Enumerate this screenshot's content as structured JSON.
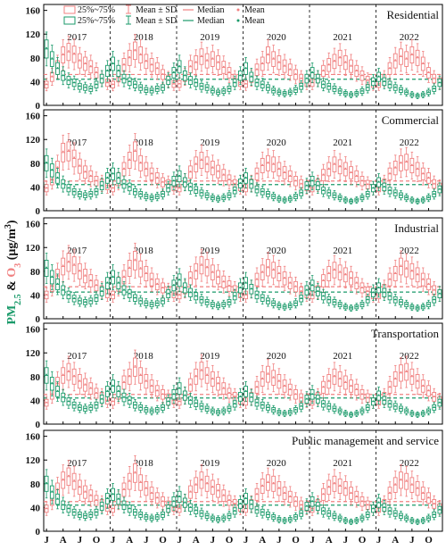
{
  "chart_data": {
    "type": "box",
    "ylabel_parts": [
      "PM",
      "2.5",
      " & ",
      "O",
      "3",
      " (μg/m",
      "3",
      ")"
    ],
    "ylim": [
      0,
      170
    ],
    "yticks": [
      0,
      40,
      80,
      120,
      160
    ],
    "years": [
      "2017",
      "2018",
      "2019",
      "2020",
      "2021",
      "2022"
    ],
    "month_ticks": [
      "J",
      "A",
      "J",
      "O",
      "J",
      "A",
      "J",
      "O",
      "J",
      "A",
      "J",
      "O",
      "J",
      "A",
      "J",
      "O",
      "J",
      "A",
      "J",
      "O",
      "J",
      "A",
      "J",
      "O"
    ],
    "legend": {
      "pm_box": "25%~75%",
      "o3_box": "25%~75%",
      "pm_msd": "Mean ± SD",
      "o3_msd": "Mean ± SD",
      "pm_median": "Median",
      "o3_median": "Median",
      "pm_mean": "Mean",
      "o3_mean": "Mean"
    },
    "colors": {
      "o3": "#f08080",
      "pm25": "#1a9a6a",
      "grid": "#000000"
    },
    "panels": [
      {
        "name": "Residential",
        "o3_overall_mean": 52,
        "pm25_overall_mean": 44,
        "o3_median": [
          35,
          48,
          65,
          85,
          90,
          86,
          75,
          70,
          65,
          55,
          45,
          38,
          35,
          47,
          68,
          80,
          92,
          85,
          74,
          68,
          62,
          52,
          44,
          36,
          36,
          48,
          65,
          72,
          82,
          75,
          78,
          72,
          64,
          55,
          45,
          38,
          36,
          46,
          60,
          70,
          85,
          78,
          72,
          66,
          60,
          52,
          45,
          38,
          38,
          45,
          58,
          68,
          74,
          80,
          72,
          66,
          58,
          50,
          42,
          36,
          36,
          45,
          62,
          75,
          82,
          78,
          85,
          80,
          70,
          55,
          45,
          40
        ],
        "pm25_median": [
          95,
          78,
          62,
          50,
          42,
          38,
          32,
          30,
          28,
          35,
          45,
          58,
          70,
          58,
          45,
          40,
          35,
          30,
          26,
          25,
          28,
          30,
          42,
          55,
          65,
          50,
          42,
          38,
          32,
          30,
          25,
          22,
          24,
          28,
          38,
          50,
          62,
          48,
          38,
          35,
          30,
          25,
          22,
          20,
          22,
          26,
          32,
          45,
          55,
          45,
          35,
          32,
          28,
          24,
          20,
          18,
          20,
          24,
          30,
          40,
          48,
          40,
          35,
          30,
          26,
          22,
          18,
          16,
          18,
          22,
          28,
          38
        ]
      },
      {
        "name": "Commercial",
        "o3_overall_mean": 50,
        "pm25_overall_mean": 44,
        "o3_median": [
          38,
          52,
          72,
          98,
          100,
          88,
          75,
          65,
          58,
          50,
          46,
          42,
          38,
          50,
          70,
          85,
          100,
          80,
          70,
          62,
          55,
          48,
          45,
          40,
          38,
          48,
          65,
          78,
          85,
          78,
          72,
          66,
          60,
          52,
          45,
          40,
          38,
          46,
          62,
          76,
          80,
          78,
          70,
          64,
          58,
          50,
          45,
          40,
          38,
          46,
          60,
          70,
          78,
          74,
          70,
          64,
          58,
          50,
          44,
          38,
          38,
          46,
          62,
          72,
          80,
          82,
          76,
          70,
          62,
          55,
          45,
          40
        ],
        "pm25_median": [
          80,
          68,
          55,
          45,
          38,
          32,
          28,
          26,
          28,
          32,
          42,
          55,
          62,
          55,
          45,
          40,
          32,
          28,
          24,
          22,
          24,
          28,
          38,
          50,
          58,
          48,
          40,
          35,
          30,
          26,
          22,
          20,
          22,
          26,
          34,
          46,
          55,
          45,
          36,
          32,
          28,
          24,
          20,
          18,
          20,
          24,
          30,
          42,
          50,
          42,
          34,
          30,
          26,
          22,
          18,
          16,
          18,
          22,
          28,
          38,
          48,
          40,
          34,
          30,
          26,
          22,
          18,
          16,
          18,
          22,
          28,
          36
        ]
      },
      {
        "name": "Industrial",
        "o3_overall_mean": 54,
        "pm25_overall_mean": 45,
        "o3_median": [
          40,
          55,
          72,
          88,
          95,
          90,
          80,
          72,
          64,
          56,
          48,
          42,
          40,
          55,
          70,
          85,
          98,
          84,
          76,
          66,
          58,
          52,
          46,
          42,
          40,
          50,
          68,
          80,
          90,
          86,
          78,
          70,
          62,
          55,
          48,
          42,
          40,
          50,
          66,
          78,
          86,
          82,
          76,
          68,
          60,
          54,
          46,
          42,
          40,
          48,
          64,
          76,
          82,
          78,
          74,
          68,
          60,
          52,
          46,
          40,
          40,
          50,
          66,
          76,
          88,
          84,
          80,
          74,
          66,
          58,
          48,
          42
        ],
        "pm25_median": [
          85,
          70,
          58,
          48,
          40,
          34,
          30,
          28,
          30,
          35,
          46,
          60,
          70,
          60,
          48,
          42,
          35,
          30,
          26,
          24,
          26,
          30,
          42,
          56,
          65,
          52,
          44,
          38,
          32,
          28,
          24,
          22,
          24,
          28,
          38,
          52,
          60,
          50,
          40,
          35,
          30,
          26,
          22,
          20,
          22,
          26,
          34,
          48,
          56,
          46,
          38,
          32,
          28,
          24,
          20,
          18,
          20,
          24,
          32,
          44,
          52,
          44,
          38,
          32,
          28,
          24,
          20,
          18,
          20,
          24,
          32,
          42
        ]
      },
      {
        "name": "Transportation",
        "o3_overall_mean": 50,
        "pm25_overall_mean": 44,
        "o3_median": [
          36,
          50,
          68,
          82,
          88,
          80,
          72,
          66,
          60,
          52,
          46,
          40,
          38,
          50,
          70,
          80,
          96,
          82,
          72,
          64,
          56,
          50,
          44,
          40,
          38,
          48,
          66,
          80,
          90,
          82,
          76,
          68,
          60,
          52,
          46,
          40,
          38,
          46,
          62,
          76,
          84,
          78,
          72,
          64,
          58,
          50,
          44,
          40,
          38,
          46,
          62,
          72,
          80,
          76,
          70,
          64,
          58,
          50,
          44,
          38,
          38,
          46,
          62,
          76,
          86,
          88,
          80,
          72,
          64,
          56,
          46,
          40
        ],
        "pm25_median": [
          82,
          68,
          55,
          45,
          38,
          32,
          28,
          26,
          28,
          32,
          42,
          55,
          64,
          55,
          45,
          40,
          32,
          28,
          24,
          22,
          24,
          28,
          38,
          50,
          60,
          48,
          40,
          35,
          30,
          26,
          22,
          20,
          22,
          26,
          34,
          46,
          55,
          45,
          36,
          32,
          28,
          24,
          20,
          18,
          20,
          24,
          30,
          42,
          50,
          42,
          34,
          30,
          26,
          22,
          18,
          16,
          18,
          22,
          28,
          38,
          48,
          40,
          34,
          30,
          26,
          22,
          18,
          16,
          18,
          22,
          28,
          36
        ]
      },
      {
        "name": "Public management and service",
        "o3_overall_mean": 50,
        "pm25_overall_mean": 44,
        "o3_median": [
          38,
          52,
          70,
          86,
          92,
          84,
          74,
          66,
          60,
          52,
          46,
          40,
          38,
          52,
          70,
          84,
          98,
          82,
          72,
          64,
          56,
          50,
          44,
          40,
          38,
          48,
          66,
          78,
          86,
          80,
          74,
          68,
          60,
          52,
          46,
          40,
          38,
          46,
          62,
          76,
          82,
          80,
          72,
          64,
          58,
          50,
          44,
          40,
          38,
          46,
          62,
          74,
          80,
          76,
          72,
          64,
          58,
          50,
          44,
          38,
          38,
          46,
          64,
          78,
          86,
          84,
          78,
          72,
          64,
          56,
          46,
          40
        ],
        "pm25_median": [
          80,
          66,
          54,
          44,
          38,
          32,
          28,
          26,
          28,
          32,
          42,
          55,
          62,
          54,
          44,
          38,
          32,
          28,
          24,
          22,
          24,
          28,
          38,
          50,
          58,
          48,
          40,
          35,
          30,
          26,
          22,
          20,
          22,
          26,
          34,
          46,
          55,
          45,
          36,
          32,
          28,
          24,
          20,
          18,
          20,
          24,
          30,
          42,
          50,
          42,
          34,
          30,
          26,
          22,
          18,
          16,
          18,
          22,
          28,
          38,
          48,
          40,
          34,
          30,
          26,
          22,
          18,
          16,
          18,
          22,
          28,
          36
        ]
      }
    ]
  }
}
